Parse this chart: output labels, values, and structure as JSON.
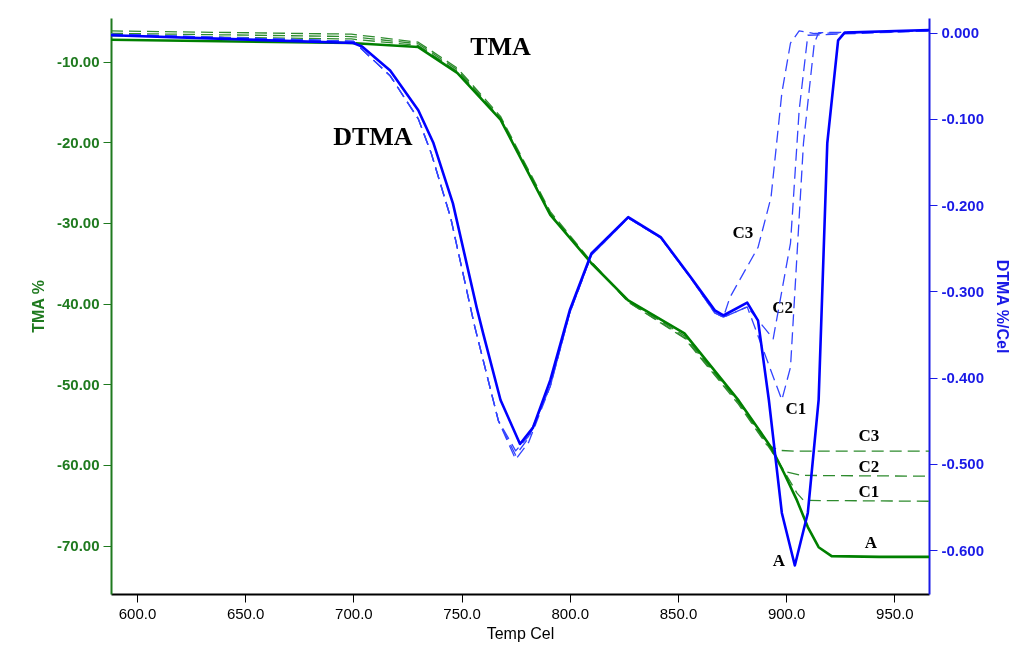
{
  "chart_data": {
    "type": "line",
    "xlabel": "Temp Cel",
    "ylabel": "TMA %",
    "y2label": "DTMA %/Cel",
    "xlim": [
      588,
      966
    ],
    "xticks": [
      {
        "value": 600,
        "label": "600.0"
      },
      {
        "value": 650,
        "label": "650.0"
      },
      {
        "value": 700,
        "label": "700.0"
      },
      {
        "value": 750,
        "label": "750.0"
      },
      {
        "value": 800,
        "label": "800.0"
      },
      {
        "value": 850,
        "label": "850.0"
      },
      {
        "value": 900,
        "label": "900.0"
      },
      {
        "value": 950,
        "label": "950.0"
      }
    ],
    "ylim": [
      -76,
      -4.6
    ],
    "yticks": [
      {
        "value": -10,
        "label": "-10.00"
      },
      {
        "value": -20,
        "label": "-20.00"
      },
      {
        "value": -30,
        "label": "-30.00"
      },
      {
        "value": -40,
        "label": "-40.00"
      },
      {
        "value": -50,
        "label": "-50.00"
      },
      {
        "value": -60,
        "label": "-60.00"
      },
      {
        "value": -70,
        "label": "-70.00"
      }
    ],
    "y2lim": [
      -0.651,
      0.017
    ],
    "y2ticks": [
      {
        "value": 0,
        "label": "0.000"
      },
      {
        "value": -0.1,
        "label": "-0.100"
      },
      {
        "value": -0.2,
        "label": "-0.200"
      },
      {
        "value": -0.3,
        "label": "-0.300"
      },
      {
        "value": -0.4,
        "label": "-0.400"
      },
      {
        "value": -0.5,
        "label": "-0.500"
      },
      {
        "value": -0.6,
        "label": "-0.600"
      }
    ],
    "series": [
      {
        "color": "#2e8b2e",
        "line_style": "dashed",
        "x": [
          588,
          699,
          730,
          748,
          768,
          791,
          810,
          827,
          853,
          878,
          891,
          897,
          905,
          966
        ],
        "values": [
          -6.2,
          -6.6,
          -7.6,
          -10.8,
          -16.8,
          -28.6,
          -34.8,
          -39.8,
          -44.3,
          -52.5,
          -57.5,
          -58.2,
          -58.3,
          -58.3
        ]
      },
      {
        "color": "#2e8b2e",
        "line_style": "dashed",
        "x": [
          588,
          699,
          730,
          748,
          768,
          791,
          810,
          827,
          853,
          878,
          893,
          899,
          907,
          966
        ],
        "values": [
          -6.5,
          -6.9,
          -7.8,
          -11.0,
          -17.0,
          -28.8,
          -34.9,
          -39.8,
          -44.2,
          -52.3,
          -58.2,
          -60.8,
          -61.3,
          -61.4
        ]
      },
      {
        "color": "#2e8b2e",
        "line_style": "dashed",
        "x": [
          588,
          699,
          730,
          748,
          768,
          791,
          810,
          827,
          853,
          878,
          893,
          905,
          908,
          966
        ],
        "values": [
          -6.8,
          -7.2,
          -8.0,
          -11.2,
          -17.1,
          -28.9,
          -34.9,
          -39.7,
          -44.0,
          -52.2,
          -58.0,
          -63.5,
          -64.4,
          -64.5
        ]
      },
      {
        "color": "#008000",
        "line_style": "solid",
        "x": [
          588,
          699,
          730,
          748,
          768,
          791,
          810,
          827,
          853,
          878,
          893,
          899,
          905,
          910,
          915,
          921,
          943,
          966
        ],
        "values": [
          -7.3,
          -7.7,
          -8.2,
          -11.4,
          -17.2,
          -29.0,
          -35.0,
          -39.6,
          -43.7,
          -52.0,
          -57.8,
          -61.0,
          -64.4,
          -67.7,
          -70.2,
          -71.3,
          -71.4,
          -71.4
        ]
      },
      {
        "color": "#3344ff",
        "line_style": "dashed",
        "axis": "y2",
        "x": [
          588,
          700,
          717,
          730,
          736,
          745,
          756,
          767,
          775,
          781,
          791,
          800,
          810,
          827,
          842,
          856,
          867,
          871,
          874,
          887,
          893,
          898,
          902,
          906,
          913,
          966
        ],
        "values": [
          -0.002,
          -0.01,
          -0.05,
          -0.1,
          -0.14,
          -0.215,
          -0.34,
          -0.45,
          -0.495,
          -0.475,
          -0.41,
          -0.325,
          -0.258,
          -0.215,
          -0.238,
          -0.285,
          -0.325,
          -0.33,
          -0.307,
          -0.249,
          -0.191,
          -0.07,
          -0.012,
          0.002,
          -0.001,
          0.002
        ]
      },
      {
        "color": "#3344ff",
        "line_style": "dashed",
        "axis": "y2",
        "x": [
          588,
          700,
          717,
          730,
          736,
          745,
          756,
          767,
          775,
          781,
          791,
          800,
          810,
          827,
          842,
          856,
          867,
          871,
          882,
          894,
          902,
          906,
          910,
          966
        ],
        "values": [
          -0.002,
          -0.01,
          -0.05,
          -0.1,
          -0.14,
          -0.215,
          -0.34,
          -0.45,
          -0.49,
          -0.47,
          -0.41,
          -0.325,
          -0.258,
          -0.215,
          -0.238,
          -0.285,
          -0.325,
          -0.33,
          -0.318,
          -0.355,
          -0.244,
          -0.09,
          -0.003,
          0.002
        ]
      },
      {
        "color": "#3344ff",
        "line_style": "dashed",
        "axis": "y2",
        "x": [
          588,
          700,
          717,
          730,
          736,
          745,
          756,
          767,
          775,
          781,
          791,
          800,
          810,
          827,
          842,
          856,
          867,
          871,
          882,
          898,
          902,
          908,
          913,
          915,
          966
        ],
        "values": [
          -0.002,
          -0.01,
          -0.05,
          -0.1,
          -0.14,
          -0.215,
          -0.34,
          -0.45,
          -0.485,
          -0.468,
          -0.41,
          -0.325,
          -0.258,
          -0.215,
          -0.238,
          -0.285,
          -0.325,
          -0.33,
          -0.318,
          -0.426,
          -0.388,
          -0.128,
          -0.012,
          0,
          0.002
        ]
      },
      {
        "color": "#0000ff",
        "line_style": "solid",
        "axis": "y2",
        "x": [
          588,
          700,
          704,
          717,
          730,
          737,
          746,
          757,
          760,
          768,
          777,
          783,
          791,
          800,
          810,
          827,
          842,
          856,
          867,
          871,
          882,
          887,
          892,
          898,
          904,
          910,
          915,
          919,
          924,
          927,
          966
        ],
        "values": [
          -0.003,
          -0.012,
          -0.016,
          -0.044,
          -0.09,
          -0.128,
          -0.198,
          -0.319,
          -0.349,
          -0.426,
          -0.477,
          -0.458,
          -0.403,
          -0.322,
          -0.256,
          -0.214,
          -0.237,
          -0.284,
          -0.322,
          -0.328,
          -0.313,
          -0.334,
          -0.426,
          -0.557,
          -0.618,
          -0.557,
          -0.426,
          -0.128,
          -0.009,
          0,
          0.003
        ]
      }
    ],
    "annotations": [
      "TMA",
      "DTMA",
      "C3",
      "C2",
      "C1",
      "A",
      "C3",
      "C2",
      "C1",
      "A"
    ]
  }
}
